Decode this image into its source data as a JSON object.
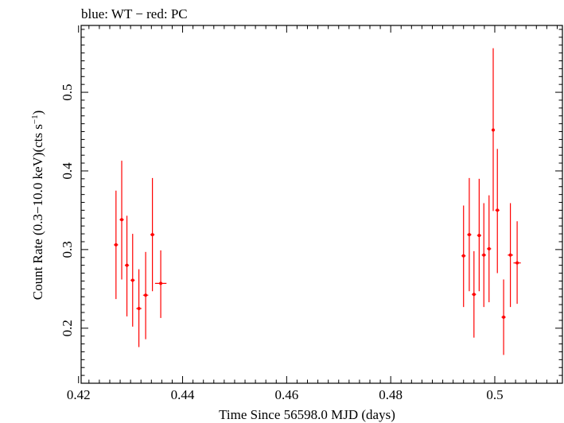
{
  "chart_data": {
    "type": "scatter",
    "title": "blue: WT − red: PC",
    "xlabel": "Time Since 56598.0 MJD (days)",
    "ylabel_main": "Count Rate (0.3−10.0 keV)(cts s",
    "ylabel_sup": "−1",
    "ylabel_close": ")",
    "xlim": [
      0.4205,
      0.513
    ],
    "ylim": [
      0.13,
      0.585
    ],
    "xticks": [
      0.42,
      0.44,
      0.46,
      0.48,
      0.5
    ],
    "xtick_labels": [
      "0.42",
      "0.44",
      "0.46",
      "0.48",
      "0.5"
    ],
    "yticks": [
      0.2,
      0.3,
      0.4,
      0.5
    ],
    "ytick_labels": [
      "0.2",
      "0.3",
      "0.4",
      "0.5"
    ],
    "series": [
      {
        "name": "PC",
        "color": "#ff0000",
        "points": [
          {
            "x": 0.4272,
            "xerr": 0.0004,
            "y": 0.306,
            "ylo": 0.237,
            "yhi": 0.375
          },
          {
            "x": 0.4283,
            "xerr": 0.0004,
            "y": 0.338,
            "ylo": 0.262,
            "yhi": 0.413
          },
          {
            "x": 0.4293,
            "xerr": 0.0004,
            "y": 0.28,
            "ylo": 0.215,
            "yhi": 0.343
          },
          {
            "x": 0.4304,
            "xerr": 0.0004,
            "y": 0.261,
            "ylo": 0.202,
            "yhi": 0.32
          },
          {
            "x": 0.4316,
            "xerr": 0.0005,
            "y": 0.225,
            "ylo": 0.176,
            "yhi": 0.275
          },
          {
            "x": 0.4329,
            "xerr": 0.0005,
            "y": 0.242,
            "ylo": 0.186,
            "yhi": 0.297
          },
          {
            "x": 0.4342,
            "xerr": 0.0004,
            "y": 0.319,
            "ylo": 0.247,
            "yhi": 0.391
          },
          {
            "x": 0.4358,
            "xerr": 0.0011,
            "y": 0.257,
            "ylo": 0.213,
            "yhi": 0.299
          },
          {
            "x": 0.494,
            "xerr": 0.0004,
            "y": 0.292,
            "ylo": 0.227,
            "yhi": 0.356
          },
          {
            "x": 0.4951,
            "xerr": 0.0004,
            "y": 0.319,
            "ylo": 0.247,
            "yhi": 0.391
          },
          {
            "x": 0.496,
            "xerr": 0.0004,
            "y": 0.243,
            "ylo": 0.188,
            "yhi": 0.298
          },
          {
            "x": 0.497,
            "xerr": 0.0004,
            "y": 0.318,
            "ylo": 0.247,
            "yhi": 0.39
          },
          {
            "x": 0.4979,
            "xerr": 0.0004,
            "y": 0.293,
            "ylo": 0.227,
            "yhi": 0.359
          },
          {
            "x": 0.4989,
            "xerr": 0.0004,
            "y": 0.301,
            "ylo": 0.233,
            "yhi": 0.369
          },
          {
            "x": 0.4997,
            "xerr": 0.0003,
            "y": 0.452,
            "ylo": 0.349,
            "yhi": 0.556
          },
          {
            "x": 0.5005,
            "xerr": 0.0004,
            "y": 0.35,
            "ylo": 0.27,
            "yhi": 0.428
          },
          {
            "x": 0.5017,
            "xerr": 0.0004,
            "y": 0.214,
            "ylo": 0.166,
            "yhi": 0.262
          },
          {
            "x": 0.503,
            "xerr": 0.0005,
            "y": 0.293,
            "ylo": 0.227,
            "yhi": 0.359
          },
          {
            "x": 0.5043,
            "xerr": 0.0007,
            "y": 0.283,
            "ylo": 0.231,
            "yhi": 0.336
          }
        ]
      }
    ]
  }
}
